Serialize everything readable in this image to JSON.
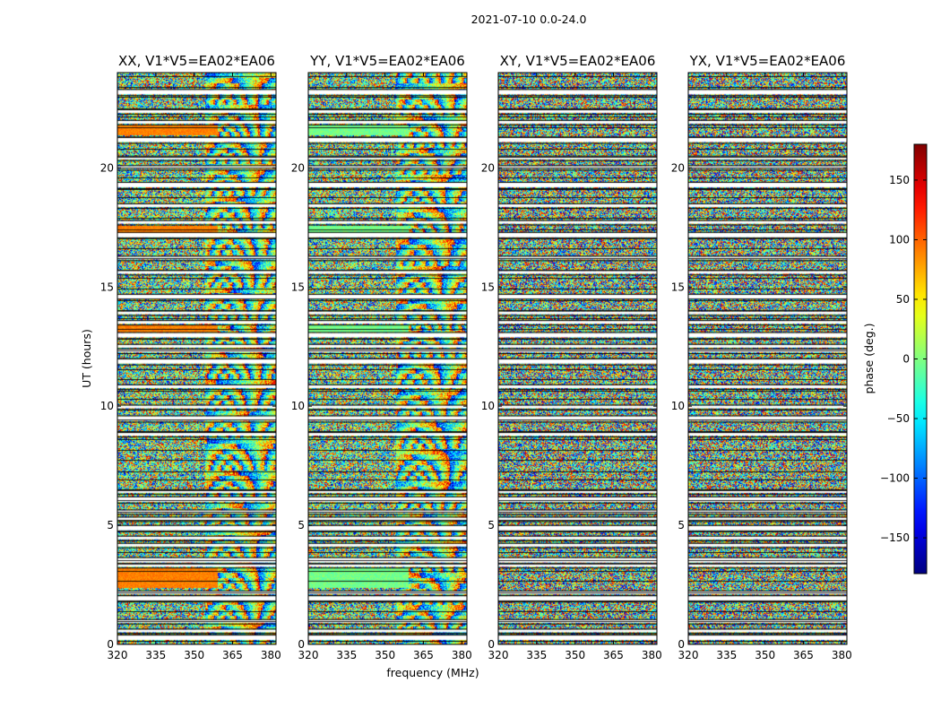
{
  "suptitle": "2021-07-10 0.0-24.0",
  "chart_data": {
    "type": "heatmap",
    "xlabel": "frequency (MHz)",
    "ylabel": "UT (hours)",
    "xlim": [
      320,
      382
    ],
    "ylim": [
      0,
      24
    ],
    "x_ticks": [
      "320",
      "335",
      "350",
      "365",
      "380"
    ],
    "y_ticks": [
      "0",
      "5",
      "10",
      "15",
      "20"
    ],
    "panels": [
      {
        "title": "XX, V1*V5=EA02*EA06",
        "pol": "XX"
      },
      {
        "title": "YY, V1*V5=EA02*EA06",
        "pol": "YY"
      },
      {
        "title": "XY, V1*V5=EA02*EA06",
        "pol": "XY"
      },
      {
        "title": "YX, V1*V5=EA02*EA06",
        "pol": "YX"
      }
    ],
    "colorbar": {
      "label": "phase (deg.)",
      "range": [
        -180,
        180
      ],
      "ticks": [
        "150",
        "100",
        "50",
        "0",
        "−50",
        "−100",
        "−150"
      ],
      "colormap": "jet"
    },
    "flagged_ut_hours": [
      0.3,
      0.55,
      0.95,
      1.95,
      2.15,
      3.3,
      3.55,
      4.15,
      4.45,
      4.9,
      5.25,
      5.55,
      6.1,
      6.4,
      8.8,
      9.5,
      9.95,
      10.8,
      11.9,
      12.3,
      12.5,
      13.0,
      13.5,
      13.9,
      14.6,
      15.6,
      16.2,
      17.2,
      17.7,
      18.4,
      19.3,
      20.0,
      20.4,
      21.2,
      21.9,
      22.35,
      23.2
    ]
  }
}
